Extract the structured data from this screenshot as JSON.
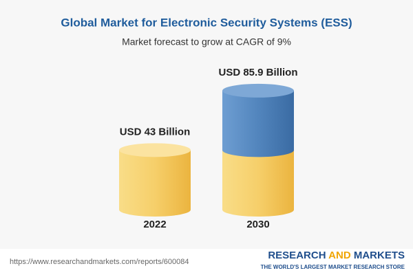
{
  "chart_data": {
    "type": "cylinder",
    "title": "Global Market for Electronic Security Systems (ESS)",
    "subtitle": "Market forecast to grow at CAGR of 9%",
    "categories": [
      "2022",
      "2030"
    ],
    "values": [
      43,
      85.9
    ],
    "value_labels": [
      "USD 43 Billion",
      "USD 85.9 Billion"
    ],
    "color": "#f2c65a",
    "growth_color": "#4d80b8"
  },
  "footer": {
    "url": "https://www.researchandmarkets.com/reports/600084",
    "brand": [
      "RESEARCH",
      "AND",
      "MARKETS"
    ],
    "tagline": "THE WORLD'S LARGEST MARKET RESEARCH STORE"
  }
}
